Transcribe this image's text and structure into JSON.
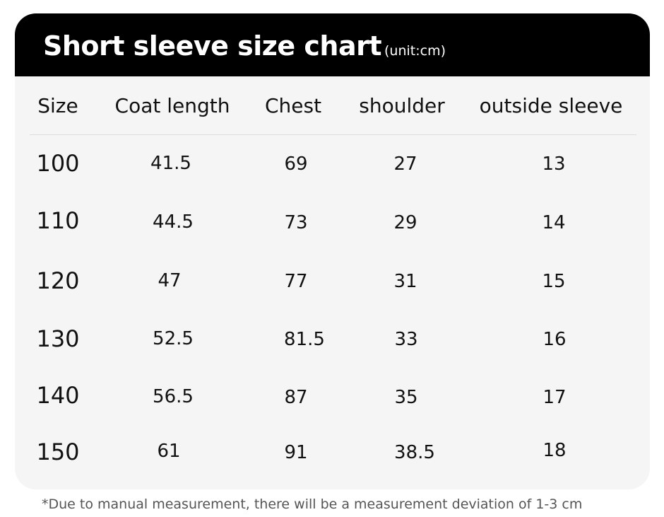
{
  "title": "Short sleeve size chart",
  "unit": "(unit:cm)",
  "columns": [
    "Size",
    "Coat length",
    "Chest",
    "shoulder",
    "outside sleeve"
  ],
  "rows": [
    [
      "100",
      "41.5",
      "69",
      "27",
      "13"
    ],
    [
      "110",
      "44.5",
      "73",
      "29",
      "14"
    ],
    [
      "120",
      "47",
      "77",
      "31",
      "15"
    ],
    [
      "130",
      "52.5",
      "81.5",
      "33",
      "16"
    ],
    [
      "140",
      "56.5",
      "87",
      "35",
      "17"
    ],
    [
      "150",
      "61",
      "91",
      "38.5",
      "18"
    ]
  ],
  "note": "*Due to manual measurement, there will be a measurement deviation of 1-3 cm",
  "colors": {
    "header_bg": "#000000",
    "card_bg": "#f5f5f5",
    "text": "#111111",
    "note_text": "#555555"
  }
}
